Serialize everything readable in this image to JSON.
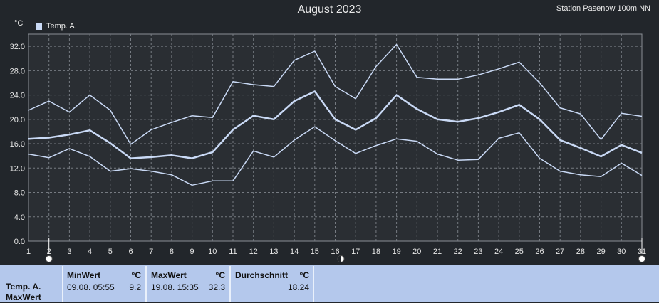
{
  "header": {
    "title": "August 2023",
    "station": "Station Pasenow 100m NN",
    "unit": "°C",
    "legend_label": "Temp. A."
  },
  "chart_data": {
    "type": "line",
    "title": "August 2023",
    "xlabel": "",
    "ylabel": "°C",
    "x": [
      1,
      2,
      3,
      4,
      5,
      6,
      7,
      8,
      9,
      10,
      11,
      12,
      13,
      14,
      15,
      16,
      17,
      18,
      19,
      20,
      21,
      22,
      23,
      24,
      25,
      26,
      27,
      28,
      29,
      30,
      31
    ],
    "xlim": [
      1,
      31
    ],
    "ylim": [
      0,
      34
    ],
    "y_ticks": [
      "0.0",
      "4.0",
      "8.0",
      "12.0",
      "16.0",
      "20.0",
      "24.0",
      "28.0",
      "32.0"
    ],
    "grid": true,
    "legend": "top-left",
    "color": "#c9d9f5",
    "series": [
      {
        "name": "Temp. A.",
        "values": [
          16.8,
          17.0,
          17.5,
          18.2,
          16.1,
          13.6,
          13.8,
          14.1,
          13.6,
          14.6,
          18.3,
          20.6,
          20.0,
          23.0,
          24.6,
          20.0,
          18.3,
          20.2,
          24.0,
          21.7,
          20.0,
          19.6,
          20.2,
          21.2,
          22.4,
          20.0,
          16.6,
          15.3,
          13.9,
          15.8,
          14.5
        ]
      },
      {
        "values": [
          21.5,
          23.0,
          21.2,
          24.0,
          21.5,
          15.9,
          18.3,
          19.5,
          20.6,
          20.3,
          26.2,
          25.7,
          25.4,
          29.7,
          31.2,
          25.4,
          23.4,
          28.7,
          32.3,
          26.9,
          26.6,
          26.6,
          27.3,
          28.3,
          29.4,
          26.0,
          21.9,
          20.9,
          16.7,
          21.0,
          20.5
        ]
      },
      {
        "values": [
          14.3,
          13.7,
          15.2,
          13.9,
          11.5,
          11.9,
          11.5,
          10.9,
          9.2,
          9.9,
          9.9,
          14.8,
          13.8,
          16.6,
          18.8,
          16.5,
          14.4,
          15.7,
          16.8,
          16.4,
          14.3,
          13.3,
          13.4,
          16.9,
          17.8,
          13.6,
          11.5,
          10.9,
          10.6,
          12.8,
          10.8
        ]
      }
    ],
    "markers": [
      "waxing-moon-icon",
      "full-moon-icon",
      "waning-moon-icon"
    ]
  },
  "stats": {
    "row_label_1": "Temp. A.",
    "row_label_2": "MaxWert",
    "min": {
      "header": "MinWert",
      "unit": "°C",
      "date": "09.08.  05:55",
      "value": "9.2"
    },
    "max": {
      "header": "MaxWert",
      "unit": "°C",
      "date": "19.08.  15:35",
      "value": "32.3"
    },
    "avg": {
      "header": "Durchschnitt",
      "unit": "°C",
      "value": "18.24"
    }
  }
}
